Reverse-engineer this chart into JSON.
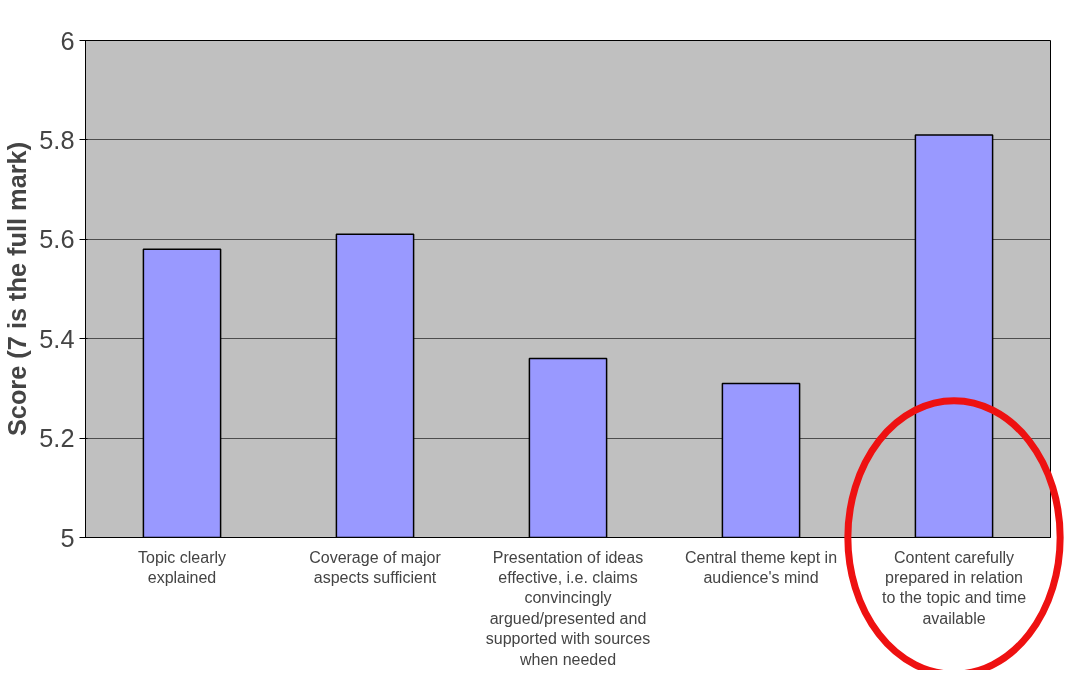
{
  "chart_data": {
    "type": "bar",
    "ylabel": "Score (7 is the full mark)",
    "categories": [
      "Topic clearly explained",
      "Coverage of major aspects sufficient",
      "Presentation of ideas effective, i.e. claims convincingly argued/presented and supported with sources when needed",
      "Central theme kept in audience's mind",
      "Content carefully prepared in relation to the topic and time available"
    ],
    "values": [
      5.58,
      5.61,
      5.36,
      5.31,
      5.81
    ],
    "color": "#9999ff",
    "ylim": [
      5,
      6
    ],
    "yticks": [
      5,
      5.2,
      5.4,
      5.6,
      5.8,
      6
    ],
    "grid": "y"
  }
}
